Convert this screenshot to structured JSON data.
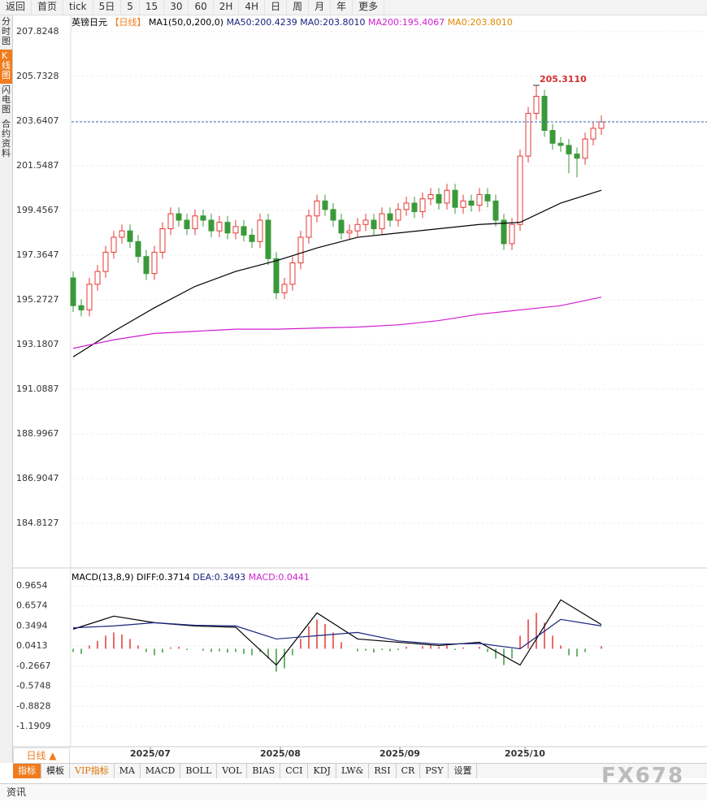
{
  "toolbar": [
    "返回",
    "首页",
    "tick",
    "5日",
    "5",
    "15",
    "30",
    "60",
    "2H",
    "4H",
    "日",
    "周",
    "月",
    "年",
    "更多"
  ],
  "sidebar": [
    "分时图",
    "K线图",
    "闪电图",
    "合约资料"
  ],
  "chart_data": [
    {
      "type": "candlestick",
      "title": "英镑日元",
      "period": "【日线】",
      "indicator": "MA1(50,0,200,0)",
      "legend": [
        {
          "label": "MA50:200.4239",
          "color": "#1a237e"
        },
        {
          "label": "MA0:203.8010",
          "color": "#1a237e"
        },
        {
          "label": "MA200:195.4067",
          "color": "#d01fd0"
        },
        {
          "label": "MA0:203.8010",
          "color": "#e08a00"
        }
      ],
      "open": [
        196.3,
        195.0,
        194.8,
        196.0,
        196.6,
        197.5,
        198.2,
        198.5,
        198.0,
        197.3,
        196.5,
        197.5,
        198.6,
        199.3,
        199.0,
        198.6,
        199.2,
        199.0,
        198.5,
        198.9,
        198.4,
        198.7,
        198.3,
        198.0,
        199.0,
        197.2,
        195.6,
        196.0,
        197.0,
        198.2,
        199.2,
        199.9,
        199.5,
        199.0,
        198.4,
        198.5,
        198.8,
        199.0,
        198.6,
        199.3,
        199.0,
        199.5,
        199.8,
        199.4,
        200.0,
        200.2,
        199.8,
        200.4,
        199.6,
        199.9,
        199.7,
        200.2,
        199.9,
        199.0,
        197.9,
        198.8,
        202.0,
        204.0,
        204.8,
        203.2,
        202.6,
        202.5,
        202.1,
        201.9,
        202.8,
        203.3
      ],
      "high": [
        196.6,
        195.3,
        196.3,
        196.9,
        197.8,
        198.5,
        198.8,
        198.8,
        198.3,
        197.6,
        197.8,
        198.9,
        199.6,
        199.6,
        199.3,
        199.5,
        199.5,
        199.3,
        199.2,
        199.2,
        199.0,
        199.0,
        198.6,
        199.3,
        199.3,
        197.5,
        196.3,
        197.3,
        198.5,
        199.5,
        200.2,
        200.2,
        199.8,
        199.3,
        198.8,
        199.1,
        199.3,
        199.3,
        199.6,
        199.6,
        199.8,
        200.1,
        200.1,
        200.3,
        200.5,
        200.5,
        200.7,
        200.7,
        200.2,
        200.2,
        200.5,
        200.5,
        200.2,
        199.3,
        199.1,
        202.3,
        204.3,
        205.311,
        205.1,
        203.5,
        202.9,
        202.8,
        202.4,
        203.1,
        203.6,
        203.9
      ],
      "low": [
        194.7,
        194.5,
        194.5,
        195.7,
        196.3,
        197.2,
        197.9,
        197.7,
        197.0,
        196.2,
        196.2,
        197.2,
        198.3,
        198.7,
        198.3,
        198.3,
        198.7,
        198.2,
        198.2,
        198.1,
        198.1,
        198.0,
        197.7,
        197.7,
        196.9,
        195.3,
        195.3,
        195.7,
        196.7,
        197.9,
        198.9,
        199.2,
        198.7,
        198.1,
        198.1,
        198.2,
        198.5,
        198.3,
        198.3,
        198.7,
        198.7,
        199.2,
        199.1,
        199.1,
        199.7,
        199.5,
        199.5,
        199.3,
        199.3,
        199.4,
        199.4,
        199.6,
        198.7,
        197.6,
        197.6,
        198.5,
        201.7,
        203.7,
        202.9,
        202.3,
        202.2,
        201.2,
        201.0,
        201.6,
        202.5,
        203.0
      ],
      "close": [
        195.0,
        194.8,
        196.0,
        196.6,
        197.5,
        198.2,
        198.5,
        198.0,
        197.3,
        196.5,
        197.5,
        198.6,
        199.3,
        199.0,
        198.6,
        199.2,
        199.0,
        198.5,
        198.9,
        198.4,
        198.7,
        198.3,
        198.0,
        199.0,
        197.2,
        195.6,
        196.0,
        197.0,
        198.2,
        199.2,
        199.9,
        199.5,
        199.0,
        198.4,
        198.5,
        198.8,
        199.0,
        198.6,
        199.3,
        199.0,
        199.5,
        199.8,
        199.4,
        200.0,
        200.2,
        199.8,
        200.4,
        199.6,
        199.9,
        199.7,
        200.2,
        199.9,
        199.0,
        197.9,
        198.8,
        202.0,
        204.0,
        204.8,
        203.2,
        202.6,
        202.5,
        202.1,
        201.9,
        202.8,
        203.3,
        203.6
      ],
      "up_color": "#e53935",
      "down_color": "#3a9a3a",
      "high_label": "205.3110",
      "high_index": 57,
      "ylim": [
        182.76,
        208.47
      ],
      "yticks": [
        184.8127,
        186.9047,
        188.9967,
        191.0887,
        193.1807,
        195.2727,
        197.3647,
        199.4567,
        201.5487,
        203.6407,
        205.7328,
        207.8248
      ],
      "grid": true,
      "xlim": [
        -0.2,
        77.8
      ],
      "xticks": [
        {
          "value": 9.5,
          "label": "2025/07"
        },
        {
          "value": 25.5,
          "label": "2025/08"
        },
        {
          "value": 40.2,
          "label": "2025/09"
        },
        {
          "value": 55.6,
          "label": "2025/10"
        }
      ],
      "series": [
        {
          "color": "#000000",
          "x": [
            0,
            5,
            10,
            15,
            20,
            25,
            30,
            35,
            40,
            45,
            50,
            55,
            60,
            65
          ],
          "values": [
            192.6,
            193.8,
            194.9,
            195.9,
            196.6,
            197.1,
            197.7,
            198.2,
            198.4,
            198.6,
            198.8,
            198.9,
            199.8,
            200.4
          ]
        },
        {
          "color": "#d01fd0",
          "x": [
            0,
            5,
            10,
            15,
            20,
            25,
            30,
            35,
            40,
            45,
            50,
            55,
            60,
            65
          ],
          "values": [
            193.0,
            193.4,
            193.7,
            193.8,
            193.9,
            193.9,
            193.95,
            194.0,
            194.1,
            194.3,
            194.6,
            194.8,
            195.0,
            195.4
          ]
        }
      ]
    },
    {
      "type": "macd",
      "title": "MACD(13,8,9)",
      "legend": [
        {
          "label": "DIFF:0.3714",
          "color": "#000000"
        },
        {
          "label": "DEA:0.3493",
          "color": "#1a237e"
        },
        {
          "label": "MACD:0.0441",
          "color": "#d01fd0"
        }
      ],
      "histogram": [
        -0.05,
        -0.08,
        0.05,
        0.12,
        0.2,
        0.25,
        0.22,
        0.15,
        0.05,
        -0.05,
        -0.1,
        -0.06,
        0.02,
        0.03,
        -0.02,
        0.0,
        -0.03,
        -0.05,
        -0.04,
        -0.06,
        -0.05,
        -0.08,
        -0.1,
        -0.05,
        -0.15,
        -0.35,
        -0.3,
        -0.1,
        0.15,
        0.35,
        0.45,
        0.38,
        0.25,
        0.1,
        0.0,
        -0.04,
        -0.03,
        -0.06,
        -0.02,
        -0.04,
        -0.02,
        0.03,
        0.0,
        0.04,
        0.05,
        0.03,
        0.05,
        -0.02,
        0.02,
        0.0,
        0.03,
        -0.05,
        -0.15,
        -0.25,
        -0.15,
        0.2,
        0.45,
        0.55,
        0.4,
        0.2,
        0.05,
        -0.1,
        -0.12,
        -0.05,
        0.0,
        0.04
      ],
      "up_color": "#e53935",
      "down_color": "#3a9a3a",
      "ylim": [
        -1.49,
        1.227
      ],
      "yticks": [
        -1.1909,
        -0.8828,
        -0.5748,
        -0.2667,
        0.0413,
        0.3494,
        0.6574,
        0.9654
      ],
      "grid": true,
      "xlim": [
        -0.2,
        77.8
      ],
      "series": [
        {
          "color": "#000000",
          "x": [
            0,
            5,
            10,
            15,
            20,
            25,
            30,
            35,
            40,
            45,
            50,
            55,
            60,
            65
          ],
          "values": [
            0.3,
            0.5,
            0.4,
            0.35,
            0.33,
            -0.25,
            0.55,
            0.15,
            0.1,
            0.05,
            0.1,
            -0.25,
            0.75,
            0.37
          ]
        },
        {
          "color": "#1a237e",
          "x": [
            0,
            5,
            10,
            15,
            20,
            25,
            30,
            35,
            40,
            45,
            50,
            55,
            60,
            65
          ],
          "values": [
            0.32,
            0.35,
            0.4,
            0.36,
            0.35,
            0.15,
            0.2,
            0.25,
            0.12,
            0.07,
            0.08,
            0.0,
            0.45,
            0.35
          ]
        }
      ]
    }
  ],
  "period_button": "日线 ▲",
  "tabs": [
    "指标",
    "模板",
    "VIP指标",
    "MA",
    "MACD",
    "BOLL",
    "VOL",
    "BIAS",
    "CCI",
    "KDJ",
    "LW&",
    "RSI",
    "CR",
    "PSY",
    "设置"
  ],
  "news": "资讯",
  "watermark": "FX678"
}
